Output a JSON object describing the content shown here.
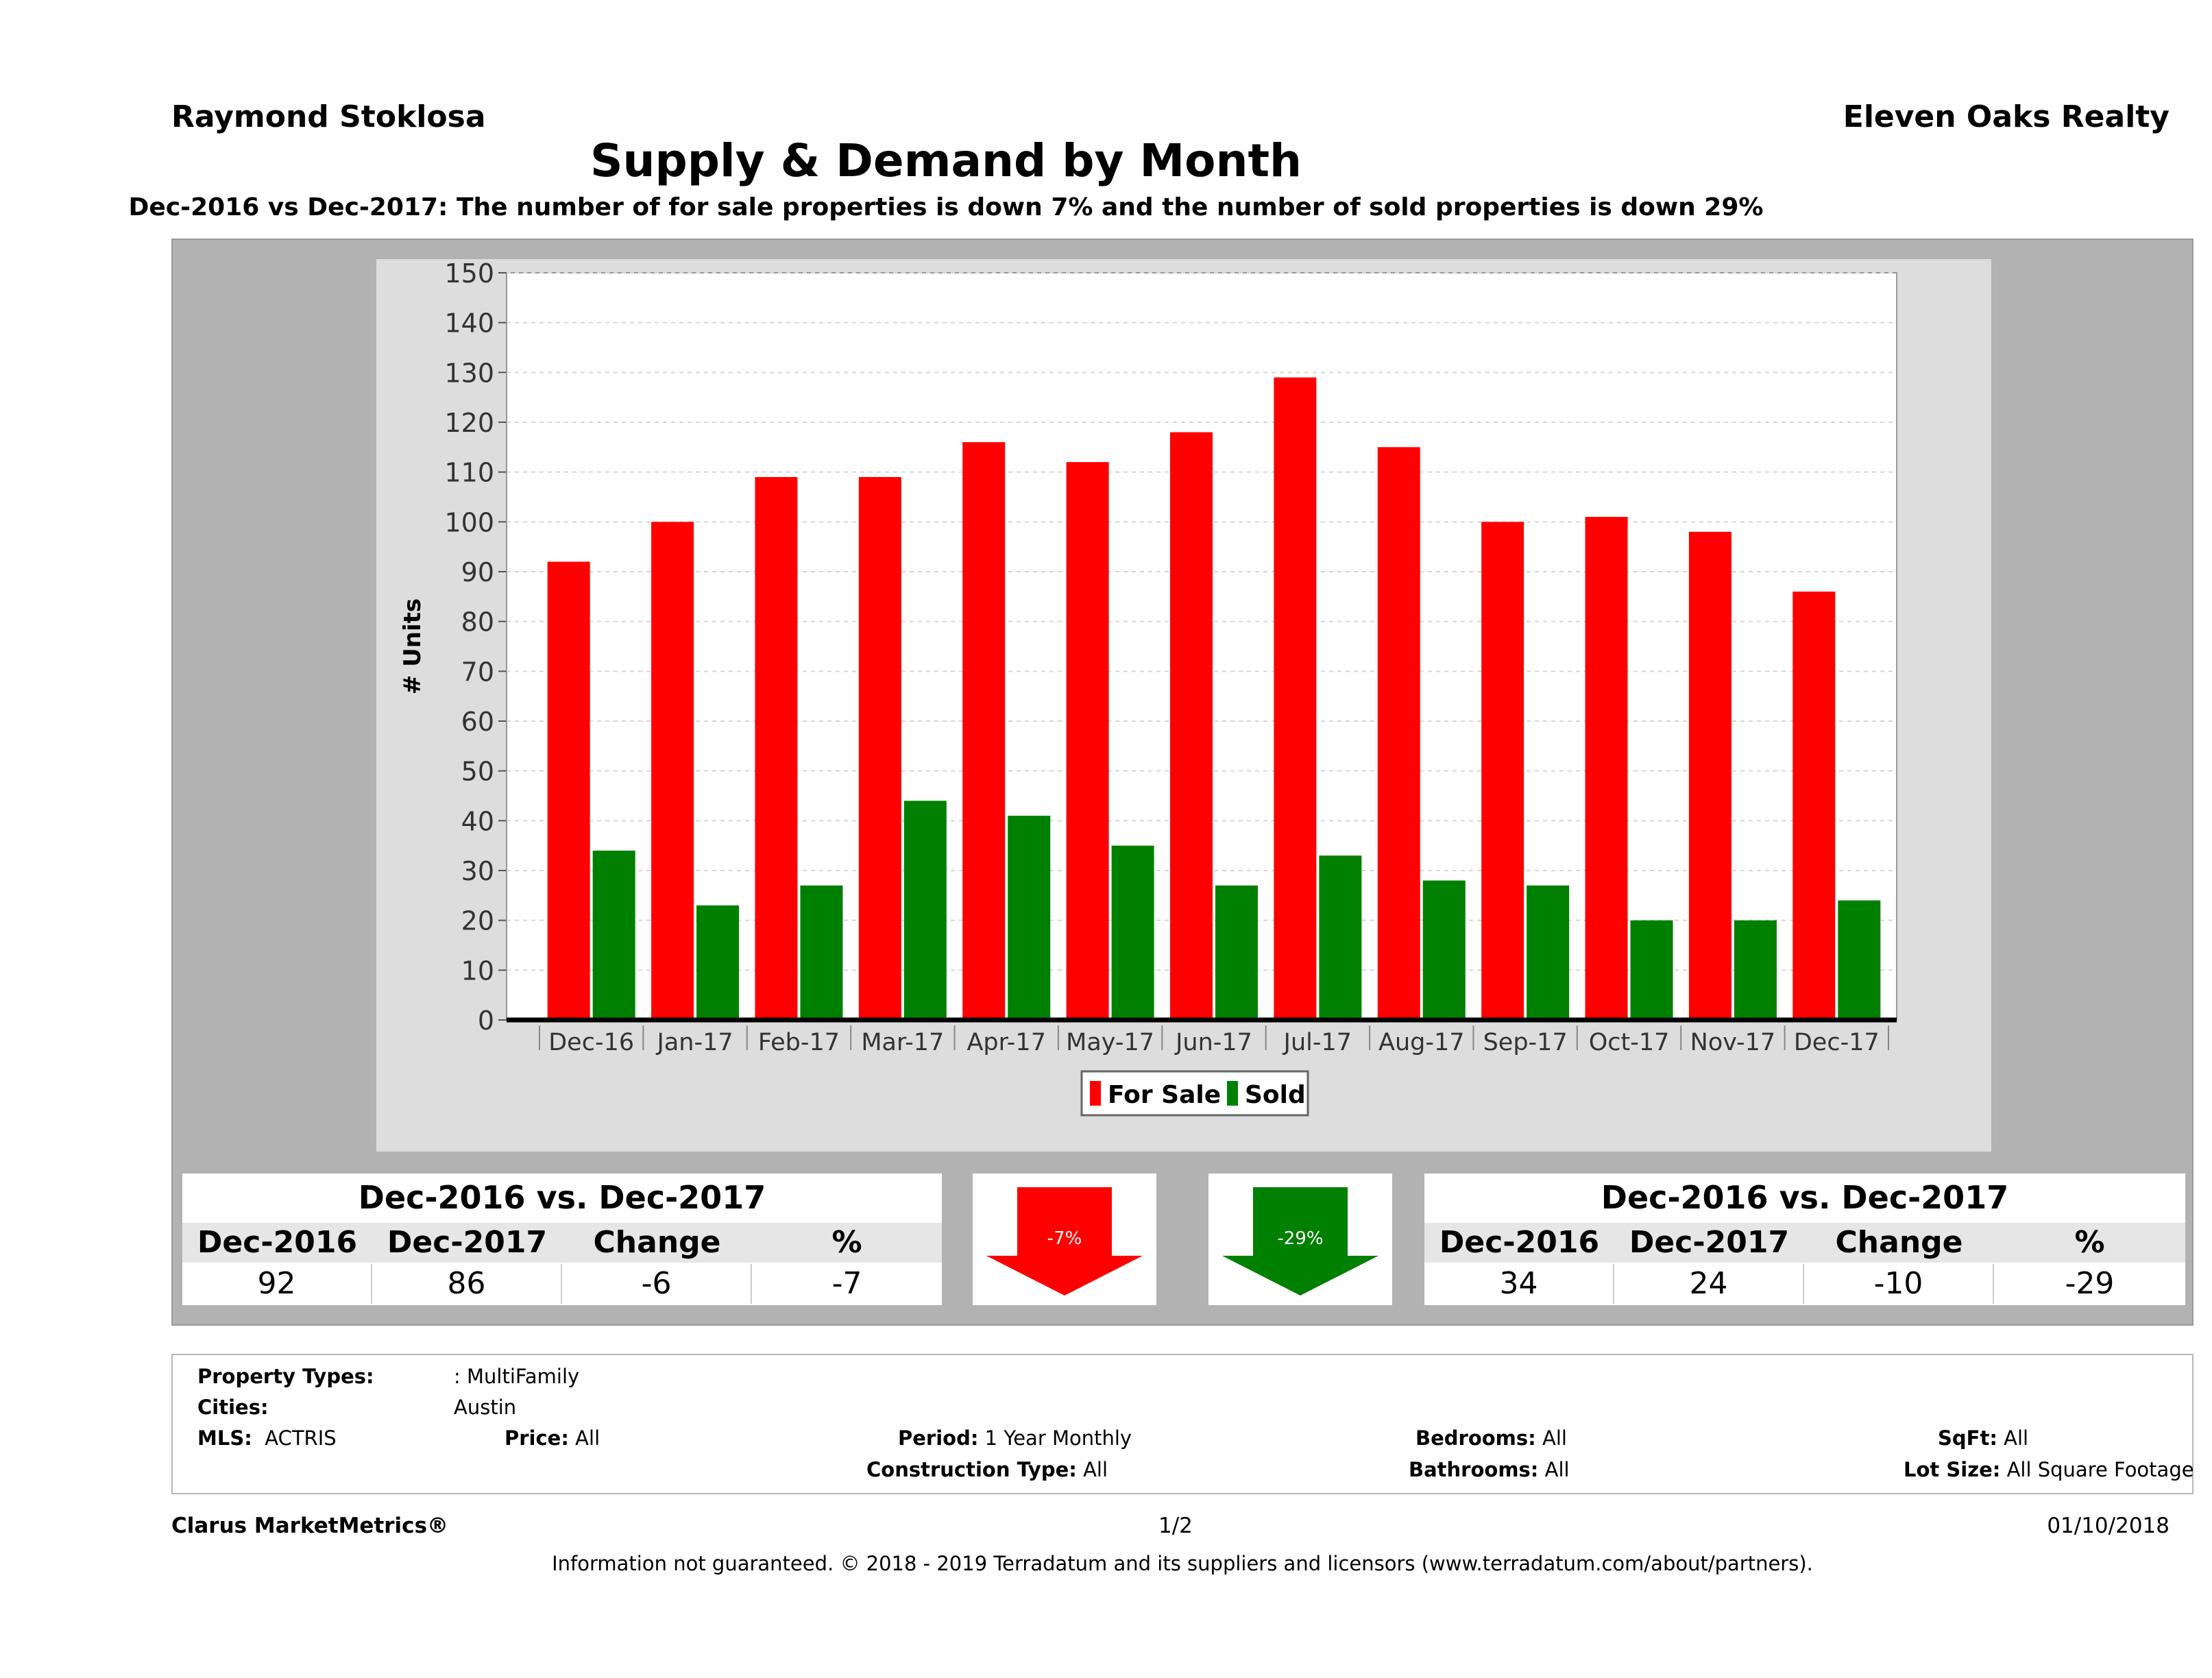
{
  "header": {
    "agent": "Raymond Stoklosa",
    "brokerage": "Eleven Oaks Realty",
    "title": "Supply & Demand by Month",
    "subtitle": "Dec-2016 vs Dec-2017: The number of for sale properties is down 7% and the number of sold properties is down 29%"
  },
  "chart_data": {
    "type": "bar",
    "ylabel": "# Units",
    "ylim": [
      0,
      150
    ],
    "yticks": [
      "0",
      "10",
      "20",
      "30",
      "40",
      "50",
      "60",
      "70",
      "80",
      "90",
      "100",
      "110",
      "120",
      "130",
      "140",
      "150"
    ],
    "grid": true,
    "legend_position": "bottom",
    "categories": [
      "Dec-16",
      "Jan-17",
      "Feb-17",
      "Mar-17",
      "Apr-17",
      "May-17",
      "Jun-17",
      "Jul-17",
      "Aug-17",
      "Sep-17",
      "Oct-17",
      "Nov-17",
      "Dec-17"
    ],
    "series": [
      {
        "name": "For Sale",
        "color": "#ff0000",
        "values": [
          92,
          100,
          109,
          109,
          116,
          112,
          118,
          129,
          115,
          100,
          101,
          98,
          86
        ]
      },
      {
        "name": "Sold",
        "color": "#008000",
        "values": [
          34,
          23,
          27,
          44,
          41,
          35,
          27,
          33,
          28,
          27,
          20,
          20,
          24
        ]
      }
    ]
  },
  "for_sale_table": {
    "title": "Dec-2016 vs. Dec-2017",
    "headers": [
      "Dec-2016",
      "Dec-2017",
      "Change",
      "%"
    ],
    "values": [
      "92",
      "86",
      "-6",
      "-7"
    ]
  },
  "sold_table": {
    "title": "Dec-2016 vs. Dec-2017",
    "headers": [
      "Dec-2016",
      "Dec-2017",
      "Change",
      "%"
    ],
    "values": [
      "34",
      "24",
      "-10",
      "-29"
    ]
  },
  "arrows": {
    "for_sale": {
      "label": "-7%",
      "color": "#ff0000"
    },
    "sold": {
      "label": "-29%",
      "color": "#008000"
    }
  },
  "info": {
    "property_types_label": "Property Types:",
    "property_types_value": ": MultiFamily",
    "cities_label": "Cities:",
    "cities_value": "Austin",
    "mls_label": "MLS:",
    "mls_value": "ACTRIS",
    "price_label": "Price:",
    "price_value": "All",
    "period_label": "Period:",
    "period_value": "1 Year Monthly",
    "construction_label": "Construction Type:",
    "construction_value": "All",
    "bedrooms_label": "Bedrooms:",
    "bedrooms_value": "All",
    "bathrooms_label": "Bathrooms:",
    "bathrooms_value": "All",
    "sqft_label": "SqFt:",
    "sqft_value": "All",
    "lotsize_label": "Lot Size:",
    "lotsize_value": "All Square Footage"
  },
  "footer": {
    "brand": "Clarus MarketMetrics®",
    "page": "1/2",
    "date": "01/10/2018",
    "disclaimer": "Information not guaranteed. © 2018 - 2019 Terradatum and its suppliers and licensors (www.terradatum.com/about/partners)."
  }
}
